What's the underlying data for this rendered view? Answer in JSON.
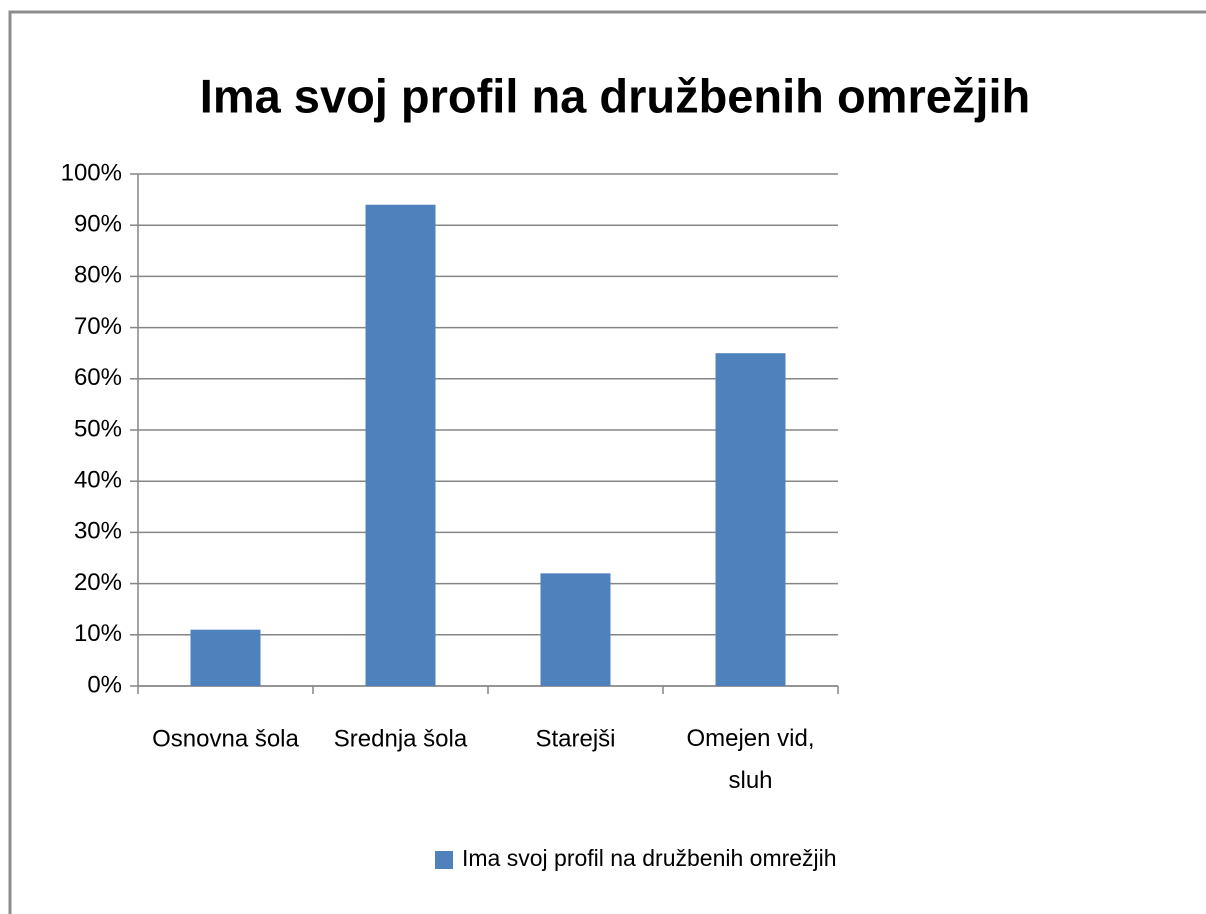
{
  "chart_data": {
    "type": "bar",
    "title": "Ima svoj profil na družbenih omrežjih",
    "categories": [
      "Osnovna šola",
      "Srednja šola",
      "Starejši",
      "Omejen vid, sluh"
    ],
    "series": [
      {
        "name": "Ima svoj profil na družbenih omrežjih",
        "color": "#4f81bd",
        "values": [
          11,
          94,
          22,
          65
        ]
      }
    ],
    "ylim": [
      0,
      100
    ],
    "yticks": [
      {
        "value": 0,
        "label": "0%"
      },
      {
        "value": 10,
        "label": "10%"
      },
      {
        "value": 20,
        "label": "20%"
      },
      {
        "value": 30,
        "label": "30%"
      },
      {
        "value": 40,
        "label": "40%"
      },
      {
        "value": 50,
        "label": "50%"
      },
      {
        "value": 60,
        "label": "60%"
      },
      {
        "value": 70,
        "label": "70%"
      },
      {
        "value": 80,
        "label": "80%"
      },
      {
        "value": 90,
        "label": "90%"
      },
      {
        "value": 100,
        "label": "100%"
      }
    ],
    "grid": true,
    "legend": "bottom"
  }
}
